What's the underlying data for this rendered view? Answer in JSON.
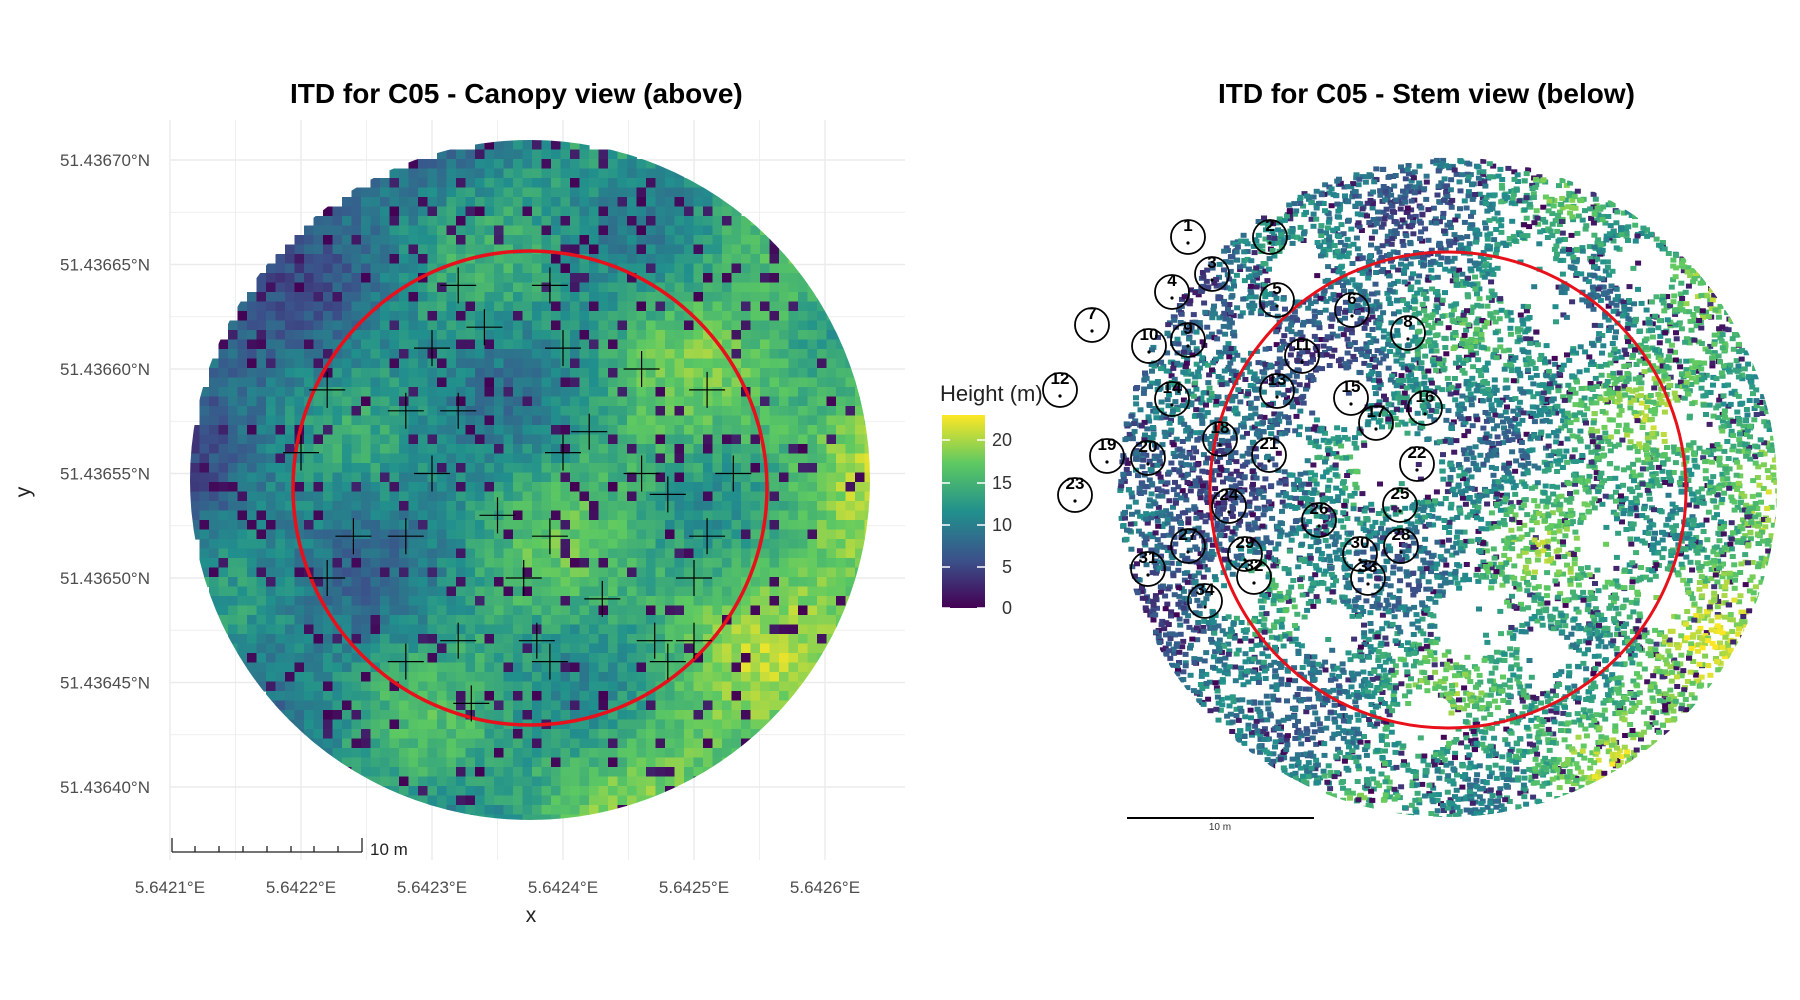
{
  "left_panel": {
    "title": "ITD for C05 - Canopy view (above)",
    "xlabel": "x",
    "ylabel": "y",
    "x_ticks": [
      "5.6421°E",
      "5.6422°E",
      "5.6423°E",
      "5.6424°E",
      "5.6425°E",
      "5.6426°E"
    ],
    "y_ticks": [
      "51.43670°N",
      "51.43665°N",
      "51.43660°N",
      "51.43655°N",
      "51.43650°N",
      "51.43645°N",
      "51.43640°N"
    ],
    "scalebar_label": "10 m"
  },
  "legend": {
    "title": "Height (m)",
    "ticks": [
      "20",
      "15",
      "10",
      "5",
      "0"
    ]
  },
  "right_panel": {
    "title": "ITD for C05 - Stem view (below)",
    "scalebar_label": "10 m"
  },
  "colors": {
    "plot_boundary": "#e8101a",
    "colormap": [
      "#440154",
      "#3b528b",
      "#21908d",
      "#5dc962",
      "#fde725"
    ]
  },
  "chart_data": [
    {
      "type": "raster-map",
      "title": "ITD for C05 - Canopy view (above)",
      "xlabel": "x",
      "ylabel": "y",
      "xlim": [
        5.64208,
        5.64265
      ],
      "ylim": [
        51.43636,
        51.43672
      ],
      "value_range": [
        0,
        23
      ],
      "tree_tops": [
        {
          "lon": 5.64232,
          "lat": 51.43664
        },
        {
          "lon": 5.64239,
          "lat": 51.43664
        },
        {
          "lon": 5.64234,
          "lat": 51.43662
        },
        {
          "lon": 5.6423,
          "lat": 51.43661
        },
        {
          "lon": 5.6424,
          "lat": 51.43661
        },
        {
          "lon": 5.64246,
          "lat": 51.4366
        },
        {
          "lon": 5.64222,
          "lat": 51.43659
        },
        {
          "lon": 5.64251,
          "lat": 51.43659
        },
        {
          "lon": 5.64228,
          "lat": 51.43658
        },
        {
          "lon": 5.64232,
          "lat": 51.43658
        },
        {
          "lon": 5.64242,
          "lat": 51.43657
        },
        {
          "lon": 5.6422,
          "lat": 51.43656
        },
        {
          "lon": 5.6423,
          "lat": 51.43655
        },
        {
          "lon": 5.6424,
          "lat": 51.43656
        },
        {
          "lon": 5.64246,
          "lat": 51.43655
        },
        {
          "lon": 5.64253,
          "lat": 51.43655
        },
        {
          "lon": 5.64248,
          "lat": 51.43654
        },
        {
          "lon": 5.64235,
          "lat": 51.43653
        },
        {
          "lon": 5.64224,
          "lat": 51.43652
        },
        {
          "lon": 5.64228,
          "lat": 51.43652
        },
        {
          "lon": 5.64239,
          "lat": 51.43652
        },
        {
          "lon": 5.64251,
          "lat": 51.43652
        },
        {
          "lon": 5.64222,
          "lat": 51.4365
        },
        {
          "lon": 5.64237,
          "lat": 51.4365
        },
        {
          "lon": 5.6425,
          "lat": 51.4365
        },
        {
          "lon": 5.64243,
          "lat": 51.43649
        },
        {
          "lon": 5.64232,
          "lat": 51.43647
        },
        {
          "lon": 5.6425,
          "lat": 51.43647
        },
        {
          "lon": 5.64238,
          "lat": 51.43647
        },
        {
          "lon": 5.64247,
          "lat": 51.43647
        },
        {
          "lon": 5.64228,
          "lat": 51.43646
        },
        {
          "lon": 5.64239,
          "lat": 51.43646
        },
        {
          "lon": 5.64248,
          "lat": 51.43646
        },
        {
          "lon": 5.64233,
          "lat": 51.43644
        }
      ]
    },
    {
      "type": "point-map",
      "title": "ITD for C05 - Stem view (below)",
      "stems": [
        {
          "label": "1",
          "x": 1188,
          "y": 237
        },
        {
          "label": "2",
          "x": 1270,
          "y": 237
        },
        {
          "label": "3",
          "x": 1212,
          "y": 274
        },
        {
          "label": "4",
          "x": 1172,
          "y": 292
        },
        {
          "label": "5",
          "x": 1277,
          "y": 300
        },
        {
          "label": "6",
          "x": 1352,
          "y": 310
        },
        {
          "label": "7",
          "x": 1092,
          "y": 325
        },
        {
          "label": "8",
          "x": 1408,
          "y": 333
        },
        {
          "label": "9",
          "x": 1188,
          "y": 340
        },
        {
          "label": "10",
          "x": 1149,
          "y": 346
        },
        {
          "label": "11",
          "x": 1302,
          "y": 356
        },
        {
          "label": "12",
          "x": 1060,
          "y": 390
        },
        {
          "label": "13",
          "x": 1277,
          "y": 391
        },
        {
          "label": "14",
          "x": 1172,
          "y": 399
        },
        {
          "label": "15",
          "x": 1351,
          "y": 398
        },
        {
          "label": "16",
          "x": 1425,
          "y": 408
        },
        {
          "label": "17",
          "x": 1376,
          "y": 423
        },
        {
          "label": "18",
          "x": 1220,
          "y": 439
        },
        {
          "label": "19",
          "x": 1107,
          "y": 456
        },
        {
          "label": "20",
          "x": 1148,
          "y": 458
        },
        {
          "label": "21",
          "x": 1269,
          "y": 455
        },
        {
          "label": "22",
          "x": 1417,
          "y": 464
        },
        {
          "label": "23",
          "x": 1075,
          "y": 495
        },
        {
          "label": "24",
          "x": 1229,
          "y": 506
        },
        {
          "label": "25",
          "x": 1400,
          "y": 505
        },
        {
          "label": "26",
          "x": 1319,
          "y": 520
        },
        {
          "label": "27",
          "x": 1188,
          "y": 546
        },
        {
          "label": "28",
          "x": 1401,
          "y": 546
        },
        {
          "label": "29",
          "x": 1245,
          "y": 554
        },
        {
          "label": "30",
          "x": 1360,
          "y": 554
        },
        {
          "label": "31",
          "x": 1148,
          "y": 569
        },
        {
          "label": "32",
          "x": 1254,
          "y": 577
        },
        {
          "label": "33",
          "x": 1368,
          "y": 578
        },
        {
          "label": "34",
          "x": 1205,
          "y": 601
        }
      ]
    }
  ]
}
